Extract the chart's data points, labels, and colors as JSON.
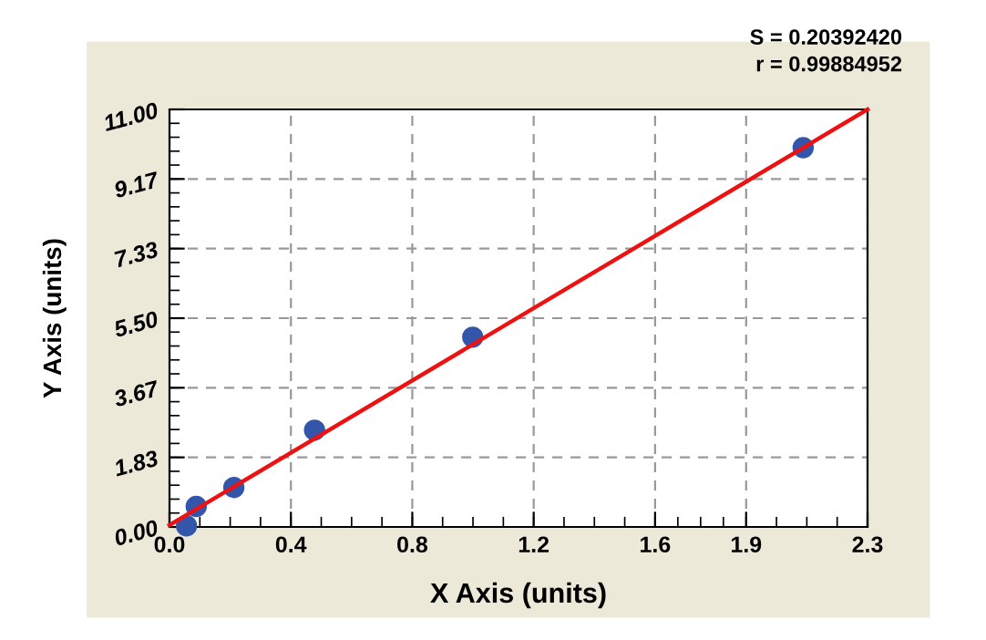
{
  "chart_data": {
    "type": "scatter",
    "xlabel": "X Axis (units)",
    "ylabel": "Y Axis (units)",
    "annotations": [
      "S = 0.20392420",
      "r = 0.99884952"
    ],
    "series": [
      {
        "marker": "circle",
        "color": "#3355aa",
        "x": [
          0.056,
          0.088,
          0.212,
          0.478,
          0.999,
          2.088
        ],
        "values": [
          0.03,
          0.54,
          1.04,
          2.55,
          5.0,
          9.99
        ]
      },
      {
        "type": "line",
        "marker": "none",
        "color": "#ee1111",
        "x": [
          0,
          2.3
        ],
        "values": [
          0.05,
          11.0
        ]
      }
    ],
    "xlim": [
      0,
      2.3
    ],
    "ylim": [
      0,
      11
    ],
    "xticks": [
      {
        "value": 0,
        "label": "0.0"
      },
      0.4,
      0.8,
      1.2,
      1.6,
      1.9,
      2.3
    ],
    "yticks": [
      {
        "value": 0,
        "label": "0.00"
      },
      {
        "value": 1.833,
        "label": "1.83"
      },
      {
        "value": 3.667,
        "label": "3.67"
      },
      {
        "value": 5.5,
        "label": "5.50"
      },
      {
        "value": 7.333,
        "label": "7.33"
      },
      {
        "value": 9.167,
        "label": "9.17"
      },
      {
        "value": 11,
        "label": "11.00"
      }
    ],
    "grid": true,
    "line_style": "solid"
  }
}
